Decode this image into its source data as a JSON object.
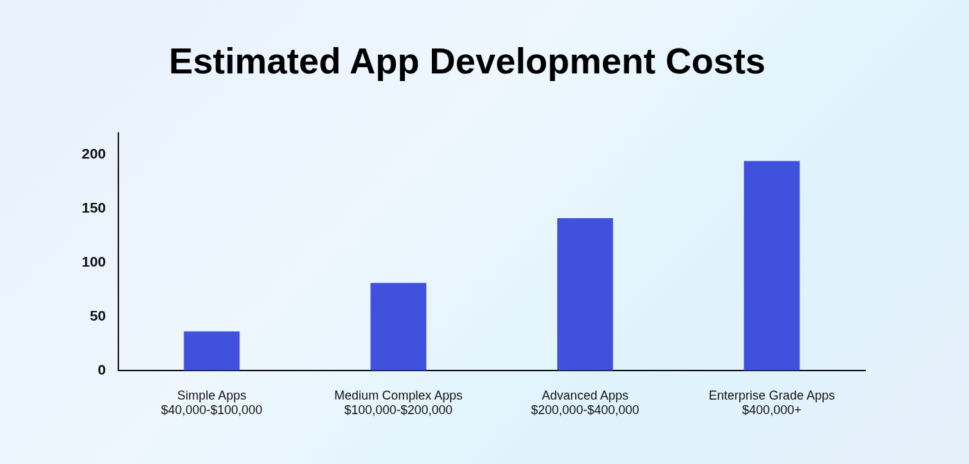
{
  "chart_data": {
    "type": "bar",
    "title": "Estimated App Development Costs",
    "categories": [
      "Simple Apps\n$40,000-$100,000",
      "Medium Complex Apps\n$100,000-$200,000",
      "Advanced Apps\n$200,000-$400,000",
      "Enterprise Grade Apps\n$400,000+"
    ],
    "values": [
      36,
      81,
      141,
      194
    ],
    "color": "#4051de",
    "ylim": [
      0,
      220
    ],
    "yticks": [
      0,
      50,
      100,
      150,
      200
    ],
    "grid": false,
    "legend": false
  }
}
